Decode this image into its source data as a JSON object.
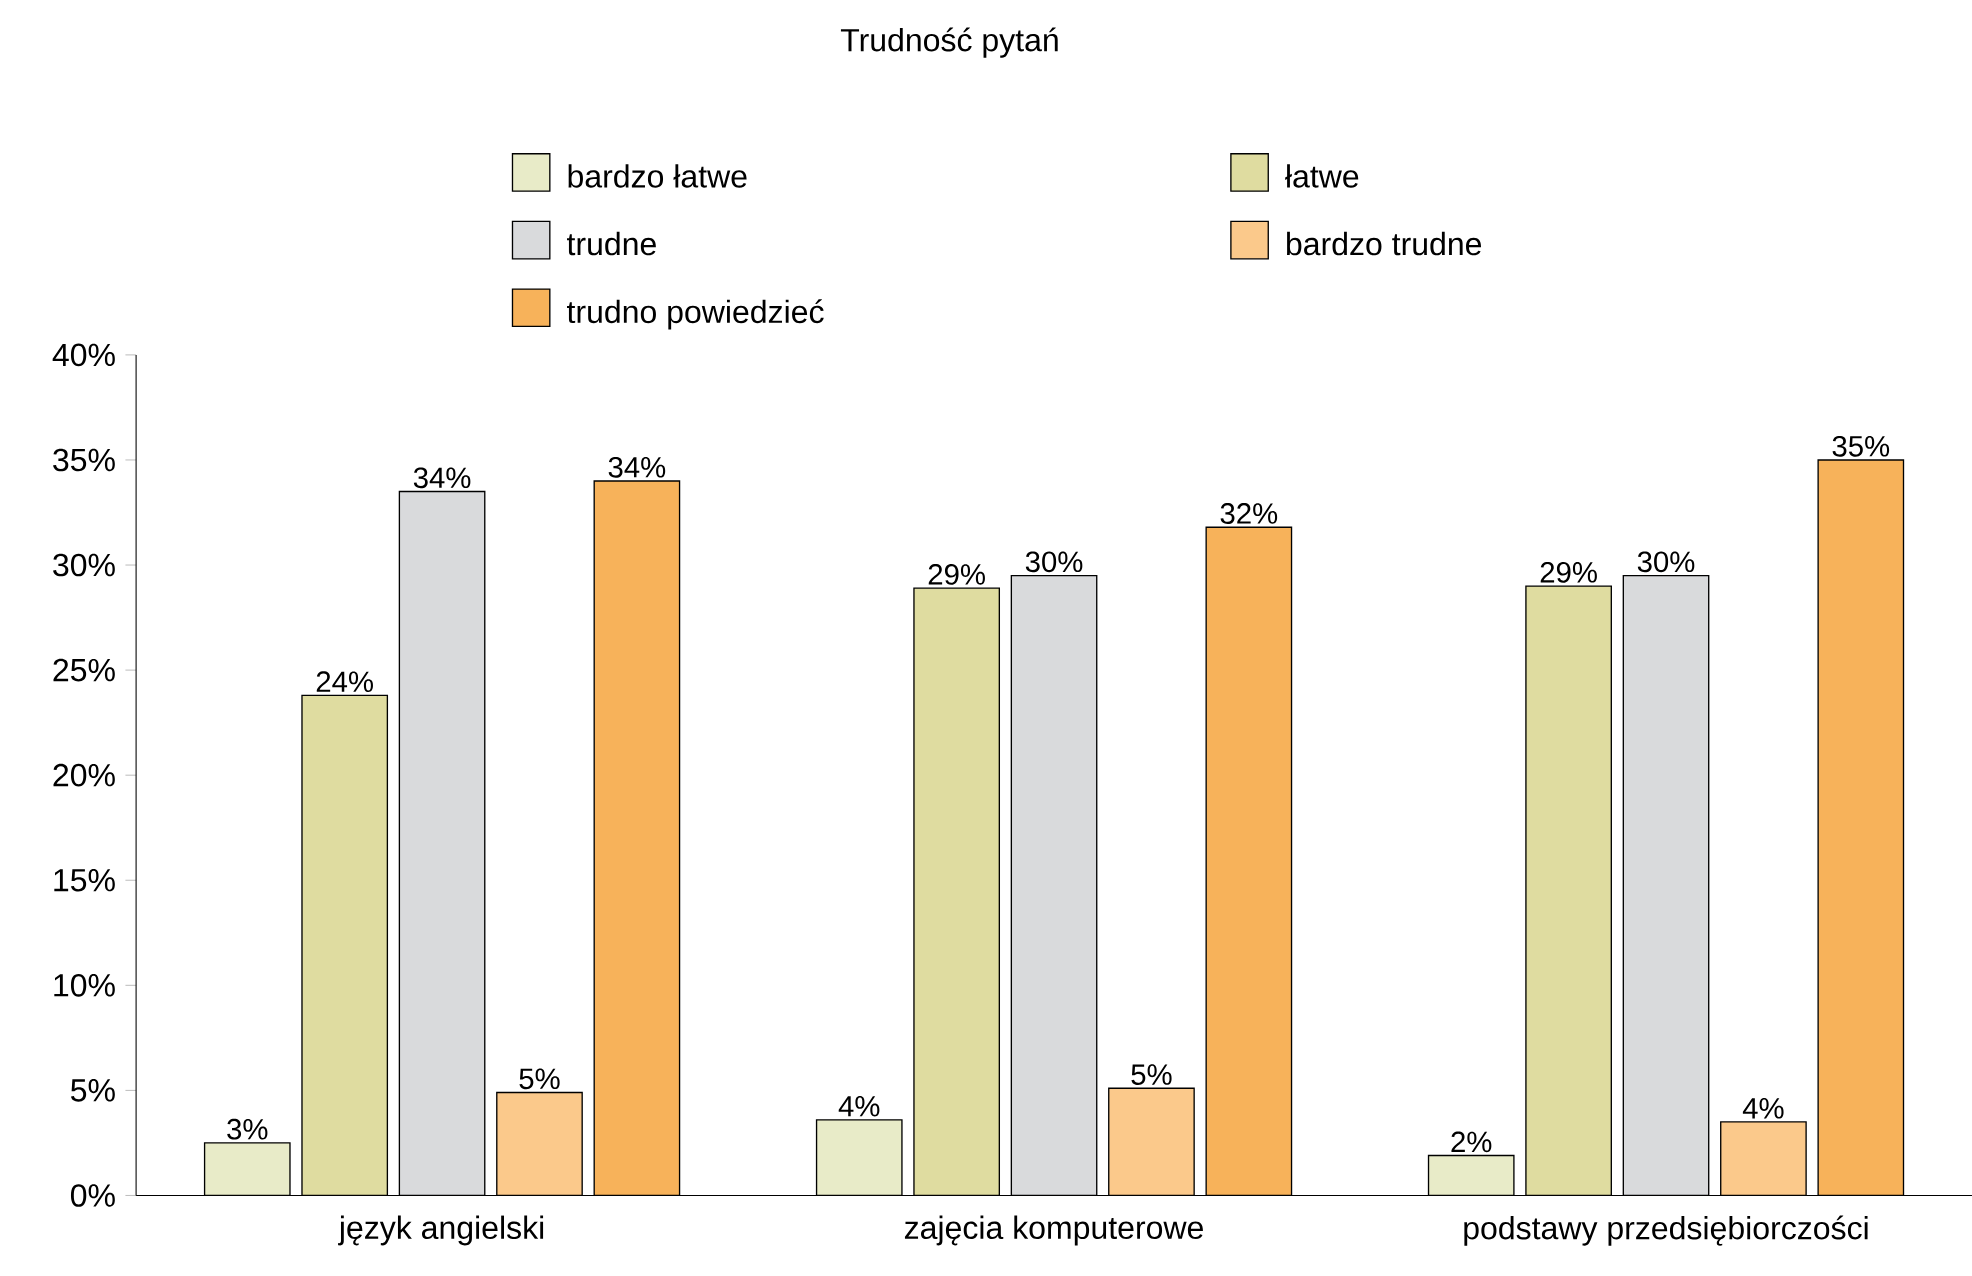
{
  "chart_data": {
    "type": "bar",
    "title": "Trudność pytań",
    "categories": [
      "język angielski",
      "zajęcia komputerowe",
      "podstawy przedsiębiorczości"
    ],
    "series": [
      {
        "name": "bardzo łatwe",
        "color": "#e8ebc8",
        "values": [
          2.5,
          3.6,
          1.9
        ],
        "value_labels": [
          "3%",
          "4%",
          "2%"
        ]
      },
      {
        "name": "łatwe",
        "color": "#dfdca0",
        "values": [
          23.8,
          28.9,
          29.0
        ],
        "value_labels": [
          "24%",
          "29%",
          "29%"
        ]
      },
      {
        "name": "trudne",
        "color": "#d9dadc",
        "values": [
          33.5,
          29.5,
          29.5
        ],
        "value_labels": [
          "34%",
          "30%",
          "30%"
        ]
      },
      {
        "name": "bardzo trudne",
        "color": "#fbc98b",
        "values": [
          4.9,
          5.1,
          3.5
        ],
        "value_labels": [
          "5%",
          "5%",
          "4%"
        ]
      },
      {
        "name": "trudno powiedzieć",
        "color": "#f7b25a",
        "values": [
          34.0,
          31.8,
          35.0
        ],
        "value_labels": [
          "34%",
          "32%",
          "35%"
        ]
      }
    ],
    "ylim": [
      0,
      40
    ],
    "yticks": [
      {
        "value": 0,
        "label": "0%"
      },
      {
        "value": 5,
        "label": "5%"
      },
      {
        "value": 10,
        "label": "10%"
      },
      {
        "value": 15,
        "label": "15%"
      },
      {
        "value": 20,
        "label": "20%"
      },
      {
        "value": 25,
        "label": "25%"
      },
      {
        "value": 30,
        "label": "30%"
      },
      {
        "value": 35,
        "label": "35%"
      },
      {
        "value": 40,
        "label": "40%"
      }
    ],
    "legend": "top"
  }
}
